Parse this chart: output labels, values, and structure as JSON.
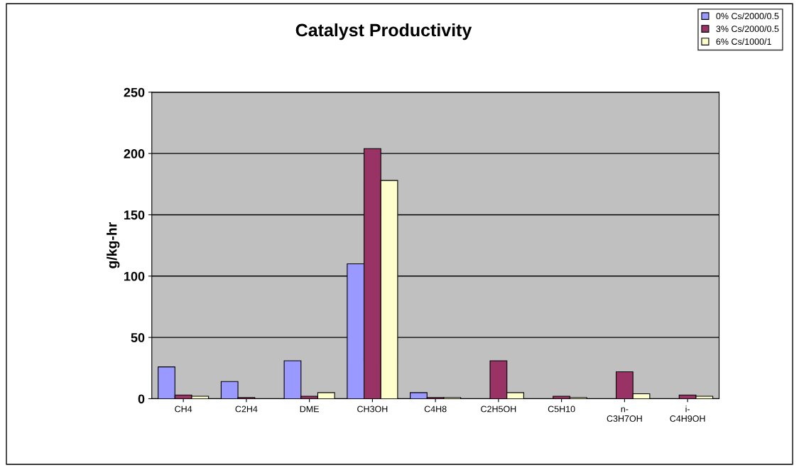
{
  "chart_data": {
    "type": "bar",
    "title": "Catalyst Productivity",
    "ylabel": "g/kg-hr",
    "categories": [
      "CH4",
      "C2H4",
      "DME",
      "CH3OH",
      "C4H8",
      "C2H5OH",
      "C5H10",
      "n-\nC3H7OH",
      "i-\nC4H9OH"
    ],
    "series": [
      {
        "name": "0% Cs/2000/0.5",
        "color": "#9999ff",
        "values": [
          26,
          14,
          31,
          110,
          5,
          0,
          0,
          0,
          0
        ]
      },
      {
        "name": "3% Cs/2000/0.5",
        "color": "#993366",
        "values": [
          3,
          1,
          2,
          204,
          1,
          31,
          2,
          22,
          3
        ]
      },
      {
        "name": "6% Cs/1000/1",
        "color": "#ffffcc",
        "values": [
          2,
          0,
          5,
          178,
          1,
          5,
          1,
          4,
          2
        ]
      }
    ],
    "ylim": [
      0,
      250
    ],
    "yticks": [
      0,
      50,
      100,
      150,
      200,
      250
    ],
    "grid": "y",
    "legend": "top right"
  }
}
